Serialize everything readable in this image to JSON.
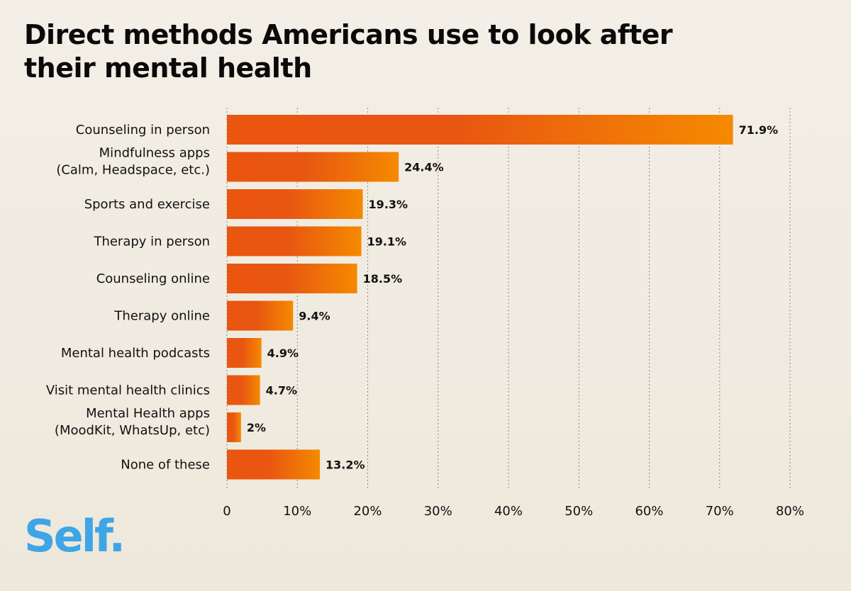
{
  "brand": {
    "logo_text": "Self",
    "logo_dot": ".",
    "logo_color": "#3ea5e6"
  },
  "chart_data": {
    "type": "bar",
    "orientation": "horizontal",
    "title": "Direct methods Americans use to look after their mental health",
    "xlabel": "",
    "ylabel": "",
    "xlim": [
      0,
      80
    ],
    "grid": true,
    "x_ticks": [
      "0",
      "10%",
      "20%",
      "30%",
      "40%",
      "50%",
      "60%",
      "70%",
      "80%"
    ],
    "bar_colors": [
      "#ea5510",
      "#f58a00"
    ],
    "categories": [
      [
        "Counseling in person"
      ],
      [
        "Mindfulness apps",
        "(Calm, Headspace, etc.)"
      ],
      [
        "Sports and exercise"
      ],
      [
        "Therapy in person"
      ],
      [
        "Counseling online"
      ],
      [
        "Therapy online"
      ],
      [
        "Mental health podcasts"
      ],
      [
        "Visit mental health clinics"
      ],
      [
        "Mental Health apps",
        "(MoodKit, WhatsUp, etc)"
      ],
      [
        "None of these"
      ]
    ],
    "values": [
      71.9,
      24.4,
      19.3,
      19.1,
      18.5,
      9.4,
      4.9,
      4.7,
      2,
      13.2
    ],
    "value_labels": [
      "71.9%",
      "24.4%",
      "19.3%",
      "19.1%",
      "18.5%",
      "9.4%",
      "4.9%",
      "4.7%",
      "2%",
      "13.2%"
    ]
  }
}
